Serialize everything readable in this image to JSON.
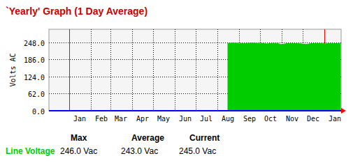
{
  "chart_data": {
    "type": "area",
    "title": "`Yearly' Graph (1 Day Average)",
    "y_label": "Volts AC",
    "x": [
      227,
      234,
      241,
      248,
      255,
      262,
      269,
      276,
      283,
      290,
      297,
      304,
      311,
      318,
      325,
      332,
      339,
      346,
      353,
      360,
      367,
      374,
      381,
      388
    ],
    "series": [
      {
        "name": "Line Voltage",
        "color": "#00cc00",
        "values": [
          245,
          246,
          245,
          244,
          245,
          246,
          245,
          244,
          243,
          245,
          245,
          240,
          244,
          245,
          244,
          243,
          241,
          244,
          245,
          244,
          243,
          245,
          244,
          245
        ]
      }
    ],
    "xlim": [
      -29,
      389
    ],
    "xticks": [
      {
        "value": 0,
        "label": "Jan"
      },
      {
        "value": 31,
        "label": "Feb"
      },
      {
        "value": 59,
        "label": "Mar"
      },
      {
        "value": 90,
        "label": "Apr"
      },
      {
        "value": 120,
        "label": "May"
      },
      {
        "value": 151,
        "label": "Jun"
      },
      {
        "value": 181,
        "label": "Jul"
      },
      {
        "value": 212,
        "label": "Aug"
      },
      {
        "value": 243,
        "label": "Sep"
      },
      {
        "value": 273,
        "label": "Oct"
      },
      {
        "value": 304,
        "label": "Nov"
      },
      {
        "value": 334,
        "label": "Dec"
      },
      {
        "value": 365,
        "label": "Jan"
      }
    ],
    "ylim": [
      0,
      296
    ],
    "yticks": [
      {
        "value": 0,
        "label": "0.0"
      },
      {
        "value": 62,
        "label": "62.0"
      },
      {
        "value": 124,
        "label": "124.0"
      },
      {
        "value": 186,
        "label": "186.0"
      },
      {
        "value": 248,
        "label": "248.0"
      }
    ],
    "grid": true,
    "summary": {
      "columns": [
        "Max",
        "Average",
        "Current"
      ],
      "values": [
        246,
        243,
        245
      ],
      "value_labels": [
        "246.0 Vac",
        "243.0 Vac",
        "245.0 Vac"
      ]
    }
  }
}
